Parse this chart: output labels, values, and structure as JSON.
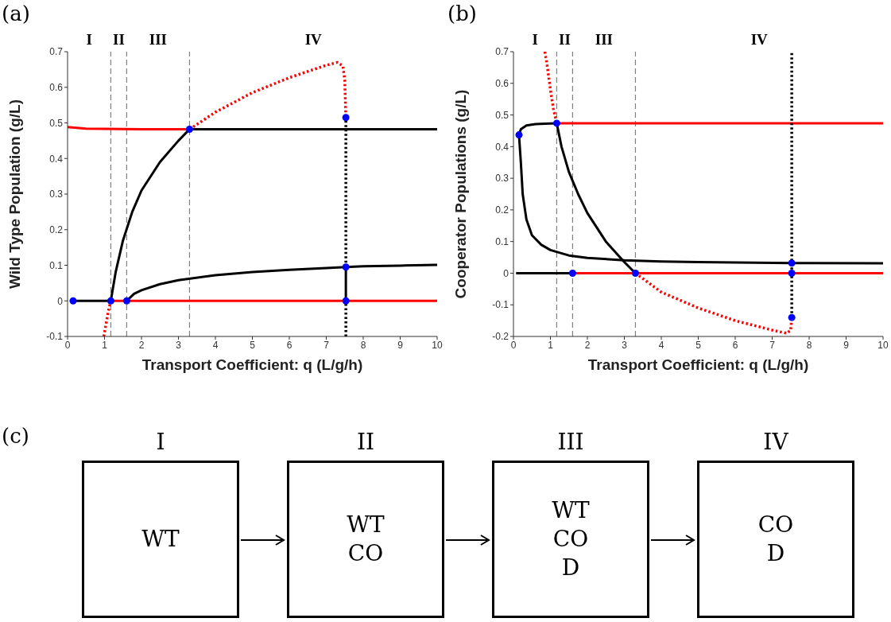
{
  "chart_data": [
    {
      "type": "line",
      "title": "(a)",
      "xlabel": "Transport Coefficient: q (L/g/h)",
      "ylabel": "Wild Type Population (g/L)",
      "xlim": [
        0,
        10
      ],
      "xticks": [
        0,
        1,
        2,
        3,
        4,
        5,
        6,
        7,
        8,
        9,
        10
      ],
      "ylim": [
        -0.1,
        0.7
      ],
      "yticks": [
        -0.1,
        0,
        0.1,
        0.2,
        0.3,
        0.4,
        0.5,
        0.6,
        0.7
      ],
      "annotations": [
        "I",
        "II",
        "III",
        "IV"
      ],
      "ref_lines": [
        {
          "axis": "x",
          "value": 1.17,
          "color": "#808080",
          "line_style": "dashed"
        },
        {
          "axis": "x",
          "value": 1.6,
          "color": "#808080",
          "line_style": "dashed"
        },
        {
          "axis": "x",
          "value": 3.3,
          "color": "#808080",
          "line_style": "dashed"
        }
      ],
      "series": [
        {
          "type": "line",
          "color": "#ff0000",
          "line_style": "solid",
          "x": [
            0,
            0.5,
            1,
            2,
            3.3
          ],
          "values": [
            0.488,
            0.484,
            0.483,
            0.482,
            0.482
          ]
        },
        {
          "type": "line",
          "color": "#ff0000",
          "line_style": "dotted",
          "x": [
            3.3,
            4,
            5,
            6,
            7,
            7.3,
            7.45,
            7.5,
            7.53
          ],
          "values": [
            0.482,
            0.53,
            0.585,
            0.627,
            0.662,
            0.67,
            0.66,
            0.62,
            0.515
          ]
        },
        {
          "type": "line",
          "color": "#000000",
          "line_style": "solid",
          "x": [
            3.3,
            10
          ],
          "values": [
            0.482,
            0.482
          ]
        },
        {
          "type": "line",
          "color": "#000000",
          "line_style": "solid",
          "x": [
            1.17,
            1.3,
            1.5,
            1.75,
            2,
            2.5,
            3,
            3.3
          ],
          "values": [
            0,
            0.08,
            0.17,
            0.25,
            0.31,
            0.39,
            0.45,
            0.482
          ]
        },
        {
          "type": "line",
          "color": "#ff0000",
          "line_style": "dotted",
          "x": [
            0.98,
            1.05,
            1.1,
            1.17
          ],
          "values": [
            -0.1,
            -0.06,
            -0.03,
            0
          ]
        },
        {
          "type": "line",
          "color": "#000000",
          "line_style": "solid",
          "x": [
            0.15,
            1.17
          ],
          "values": [
            0,
            0
          ]
        },
        {
          "type": "line",
          "color": "#ff0000",
          "line_style": "solid",
          "x": [
            1.17,
            10
          ],
          "values": [
            0,
            0
          ]
        },
        {
          "type": "line",
          "color": "#000000",
          "line_style": "solid",
          "x": [
            1.6,
            1.8,
            2,
            2.5,
            3,
            4,
            5,
            6,
            7,
            7.53,
            8,
            9,
            10
          ],
          "values": [
            0,
            0.02,
            0.03,
            0.047,
            0.058,
            0.072,
            0.081,
            0.087,
            0.092,
            0.095,
            0.097,
            0.099,
            0.101
          ]
        },
        {
          "type": "line",
          "color": "#000000",
          "line_style": "solid",
          "x": [
            7.53,
            7.53
          ],
          "values": [
            0,
            0.095
          ]
        },
        {
          "type": "line",
          "color": "#000000",
          "line_style": "dotted",
          "x": [
            7.53,
            7.53
          ],
          "values": [
            0.095,
            0.515
          ]
        },
        {
          "type": "line",
          "color": "#000000",
          "line_style": "dotted",
          "x": [
            7.53,
            7.53
          ],
          "values": [
            -0.1,
            0
          ]
        },
        {
          "type": "scatter",
          "color": "#0000ff",
          "marker": "circle",
          "x": [
            0.15,
            1.17,
            1.6,
            3.3,
            7.53,
            7.53,
            7.53
          ],
          "values": [
            0,
            0,
            0,
            0.482,
            0.515,
            0.095,
            0
          ]
        }
      ]
    },
    {
      "type": "line",
      "title": "(b)",
      "xlabel": "Transport Coefficient: q (L/g/h)",
      "ylabel": "Cooperator Populations (g/L)",
      "xlim": [
        0,
        10
      ],
      "xticks": [
        0,
        1,
        2,
        3,
        4,
        5,
        6,
        7,
        8,
        9,
        10
      ],
      "ylim": [
        -0.2,
        0.7
      ],
      "yticks": [
        -0.2,
        -0.1,
        0,
        0.1,
        0.2,
        0.3,
        0.4,
        0.5,
        0.6,
        0.7
      ],
      "annotations": [
        "I",
        "II",
        "III",
        "IV"
      ],
      "ref_lines": [
        {
          "axis": "x",
          "value": 1.17,
          "color": "#808080",
          "line_style": "dashed"
        },
        {
          "axis": "x",
          "value": 1.6,
          "color": "#808080",
          "line_style": "dashed"
        },
        {
          "axis": "x",
          "value": 3.3,
          "color": "#808080",
          "line_style": "dashed"
        }
      ],
      "series": [
        {
          "type": "line",
          "color": "#ff0000",
          "line_style": "dotted",
          "x": [
            0.85,
            0.92,
            1,
            1.08,
            1.17
          ],
          "values": [
            0.7,
            0.65,
            0.58,
            0.52,
            0.474
          ]
        },
        {
          "type": "line",
          "color": "#ff0000",
          "line_style": "solid",
          "x": [
            1.17,
            10
          ],
          "values": [
            0.474,
            0.474
          ]
        },
        {
          "type": "line",
          "color": "#000000",
          "line_style": "solid",
          "x": [
            0.15,
            0.2,
            0.35,
            0.6,
            1,
            1.17
          ],
          "values": [
            0.437,
            0.455,
            0.467,
            0.471,
            0.473,
            0.474
          ]
        },
        {
          "type": "line",
          "color": "#000000",
          "line_style": "solid",
          "x": [
            1.17,
            1.3,
            1.5,
            1.75,
            2,
            2.5,
            3,
            3.3
          ],
          "values": [
            0.474,
            0.4,
            0.32,
            0.25,
            0.19,
            0.1,
            0.035,
            0
          ]
        },
        {
          "type": "line",
          "color": "#ff0000",
          "line_style": "dotted",
          "x": [
            3.3,
            4,
            5,
            6,
            7,
            7.4,
            7.5,
            7.53
          ],
          "values": [
            0,
            -0.06,
            -0.11,
            -0.15,
            -0.18,
            -0.19,
            -0.18,
            -0.14
          ]
        },
        {
          "type": "line",
          "color": "#000000",
          "line_style": "solid",
          "x": [
            0.15,
            0.2,
            0.25,
            0.35,
            0.5,
            0.75,
            1,
            1.5,
            2,
            3,
            4,
            5,
            6,
            7.53,
            10
          ],
          "values": [
            0.437,
            0.35,
            0.25,
            0.17,
            0.12,
            0.09,
            0.073,
            0.056,
            0.048,
            0.041,
            0.037,
            0.035,
            0.034,
            0.032,
            0.031
          ]
        },
        {
          "type": "line",
          "color": "#000000",
          "line_style": "solid",
          "x": [
            0.07,
            1.6
          ],
          "values": [
            0,
            0
          ]
        },
        {
          "type": "line",
          "color": "#ff0000",
          "line_style": "solid",
          "x": [
            1.6,
            10
          ],
          "values": [
            0,
            0
          ]
        },
        {
          "type": "line",
          "color": "#000000",
          "line_style": "dotted",
          "x": [
            7.53,
            7.53
          ],
          "values": [
            -0.14,
            0.7
          ]
        },
        {
          "type": "scatter",
          "color": "#0000ff",
          "marker": "circle",
          "x": [
            0.15,
            1.17,
            1.6,
            3.3,
            7.53,
            7.53,
            7.53
          ],
          "values": [
            0.437,
            0.474,
            0,
            0,
            0.032,
            0,
            -0.14
          ]
        }
      ]
    },
    {
      "type": "other",
      "title": "(c)",
      "categories": [
        "I",
        "II",
        "III",
        "IV"
      ],
      "annotations": [
        "WT",
        "WT\nCO",
        "WT\nCO\nD",
        "CO\nD"
      ]
    }
  ]
}
